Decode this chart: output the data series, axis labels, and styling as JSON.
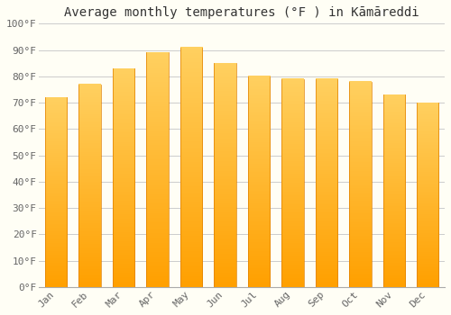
{
  "title": "Average monthly temperatures (°F ) in Kāmāreddi",
  "months": [
    "Jan",
    "Feb",
    "Mar",
    "Apr",
    "May",
    "Jun",
    "Jul",
    "Aug",
    "Sep",
    "Oct",
    "Nov",
    "Dec"
  ],
  "values": [
    72,
    77,
    83,
    89,
    91,
    85,
    80,
    79,
    79,
    78,
    73,
    70
  ],
  "bar_color": "#FFA500",
  "background_color": "#FFFEF5",
  "grid_color": "#CCCCCC",
  "ylim": [
    0,
    100
  ],
  "yticks": [
    0,
    10,
    20,
    30,
    40,
    50,
    60,
    70,
    80,
    90,
    100
  ],
  "ytick_labels": [
    "0°F",
    "10°F",
    "20°F",
    "30°F",
    "40°F",
    "50°F",
    "60°F",
    "70°F",
    "80°F",
    "90°F",
    "100°F"
  ],
  "title_fontsize": 10,
  "tick_fontsize": 8
}
